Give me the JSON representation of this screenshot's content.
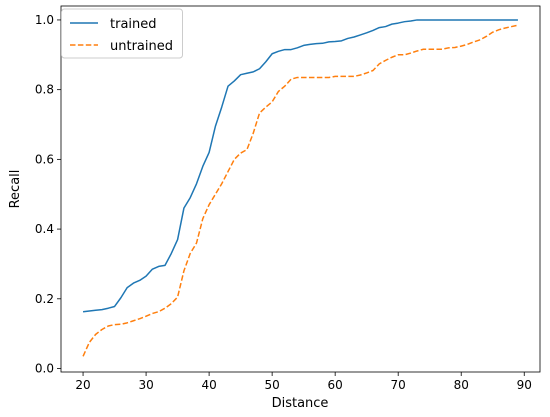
{
  "chart_data": {
    "type": "line",
    "xlabel": "Distance",
    "ylabel": "Recall",
    "xlim": [
      16.5,
      92.5
    ],
    "ylim": [
      -0.01,
      1.04
    ],
    "xticks": [
      20,
      30,
      40,
      50,
      60,
      70,
      80,
      90
    ],
    "yticks": [
      0.0,
      0.2,
      0.4,
      0.6,
      0.8,
      1.0
    ],
    "xtick_labels": [
      "20",
      "30",
      "40",
      "50",
      "60",
      "70",
      "80",
      "90"
    ],
    "ytick_labels": [
      "0.0",
      "0.2",
      "0.4",
      "0.6",
      "0.8",
      "1.0"
    ],
    "grid": false,
    "legend_position": "top-left",
    "series": [
      {
        "name": "trained",
        "color": "#1f77b4",
        "style": "solid",
        "x": [
          20,
          21,
          22,
          23,
          24,
          25,
          26,
          27,
          28,
          29,
          30,
          31,
          32,
          33,
          34,
          35,
          36,
          37,
          38,
          39,
          40,
          41,
          42,
          43,
          44,
          45,
          46,
          47,
          48,
          49,
          50,
          51,
          52,
          53,
          54,
          55,
          56,
          57,
          58,
          59,
          60,
          61,
          62,
          63,
          64,
          65,
          66,
          67,
          68,
          69,
          70,
          71,
          72,
          73,
          74,
          75,
          76,
          77,
          78,
          79,
          80,
          81,
          82,
          83,
          84,
          85,
          86,
          87,
          88,
          89
        ],
        "y": [
          0.163,
          0.165,
          0.167,
          0.169,
          0.173,
          0.178,
          0.203,
          0.232,
          0.245,
          0.253,
          0.265,
          0.285,
          0.293,
          0.296,
          0.33,
          0.37,
          0.46,
          0.49,
          0.53,
          0.58,
          0.62,
          0.695,
          0.75,
          0.81,
          0.825,
          0.843,
          0.847,
          0.851,
          0.86,
          0.88,
          0.903,
          0.91,
          0.915,
          0.915,
          0.92,
          0.927,
          0.93,
          0.932,
          0.933,
          0.937,
          0.938,
          0.94,
          0.947,
          0.951,
          0.957,
          0.963,
          0.97,
          0.978,
          0.981,
          0.988,
          0.991,
          0.995,
          0.997,
          1.0,
          1.0,
          1.0,
          1.0,
          1.0,
          1.0,
          1.0,
          1.0,
          1.0,
          1.0,
          1.0,
          1.0,
          1.0,
          1.0,
          1.0,
          1.0,
          1.0
        ]
      },
      {
        "name": "untrained",
        "color": "#ff7f0e",
        "style": "dashed",
        "x": [
          20,
          21,
          22,
          23,
          24,
          25,
          26,
          27,
          28,
          29,
          30,
          31,
          32,
          33,
          34,
          35,
          36,
          37,
          38,
          39,
          40,
          41,
          42,
          43,
          44,
          45,
          46,
          47,
          48,
          49,
          50,
          51,
          52,
          53,
          54,
          55,
          56,
          57,
          58,
          59,
          60,
          61,
          62,
          63,
          64,
          65,
          66,
          67,
          68,
          69,
          70,
          71,
          72,
          73,
          74,
          75,
          76,
          77,
          78,
          79,
          80,
          81,
          82,
          83,
          84,
          85,
          86,
          87,
          88,
          89
        ],
        "y": [
          0.035,
          0.075,
          0.098,
          0.112,
          0.122,
          0.126,
          0.127,
          0.131,
          0.137,
          0.143,
          0.15,
          0.158,
          0.163,
          0.173,
          0.186,
          0.205,
          0.28,
          0.33,
          0.36,
          0.43,
          0.47,
          0.5,
          0.53,
          0.565,
          0.6,
          0.618,
          0.628,
          0.675,
          0.733,
          0.75,
          0.765,
          0.795,
          0.81,
          0.83,
          0.835,
          0.835,
          0.835,
          0.835,
          0.835,
          0.835,
          0.838,
          0.838,
          0.838,
          0.838,
          0.842,
          0.848,
          0.855,
          0.874,
          0.884,
          0.893,
          0.9,
          0.9,
          0.905,
          0.911,
          0.916,
          0.916,
          0.916,
          0.916,
          0.92,
          0.921,
          0.925,
          0.93,
          0.937,
          0.943,
          0.953,
          0.965,
          0.972,
          0.977,
          0.981,
          0.985
        ]
      }
    ]
  }
}
